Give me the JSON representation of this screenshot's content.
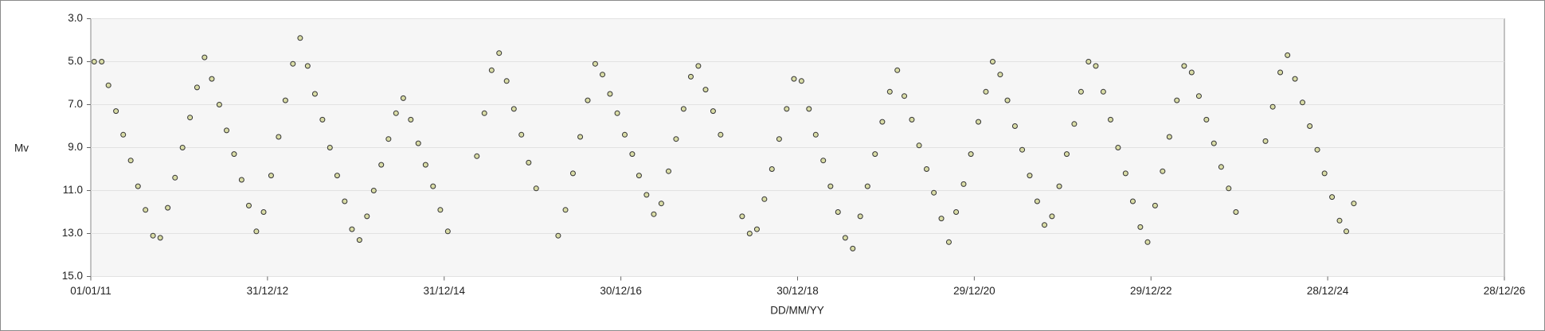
{
  "chart_data": {
    "type": "scatter",
    "x_label": "DD/MM/YY",
    "y_label": "Mv",
    "x": [
      "15/01/11",
      "15/02/11",
      "15/03/11",
      "15/04/11",
      "15/05/11",
      "15/06/11",
      "15/07/11",
      "15/08/11",
      "15/09/11",
      "15/10/11",
      "15/11/11",
      "15/12/11",
      "15/01/12",
      "15/02/12",
      "15/03/12",
      "15/04/12",
      "15/05/12",
      "15/06/12",
      "15/07/12",
      "15/08/12",
      "15/09/12",
      "15/10/12",
      "15/11/12",
      "15/12/12",
      "15/01/13",
      "15/02/13",
      "15/03/13",
      "15/04/13",
      "15/05/13",
      "15/06/13",
      "15/07/13",
      "15/08/13",
      "15/09/13",
      "15/10/13",
      "15/11/13",
      "15/12/13",
      "15/01/14",
      "15/02/14",
      "15/03/14",
      "15/04/14",
      "15/05/14",
      "15/06/14",
      "15/07/14",
      "15/08/14",
      "15/09/14",
      "15/10/14",
      "15/11/14",
      "15/12/14",
      "15/01/15",
      "15/05/15",
      "15/06/15",
      "15/07/15",
      "15/08/15",
      "15/09/15",
      "15/10/15",
      "15/11/15",
      "15/12/15",
      "15/01/16",
      "15/04/16",
      "15/05/16",
      "15/06/16",
      "15/07/16",
      "15/08/16",
      "15/09/16",
      "15/10/16",
      "15/11/16",
      "15/12/16",
      "15/01/17",
      "15/02/17",
      "15/03/17",
      "15/04/17",
      "15/05/17",
      "15/06/17",
      "15/07/17",
      "15/08/17",
      "15/09/17",
      "15/10/17",
      "15/11/17",
      "15/12/17",
      "15/01/18",
      "15/02/18",
      "15/05/18",
      "15/06/18",
      "15/07/18",
      "15/08/18",
      "15/09/18",
      "15/10/18",
      "15/11/18",
      "15/12/18",
      "15/01/19",
      "15/02/19",
      "15/03/19",
      "15/04/19",
      "15/05/19",
      "15/06/19",
      "15/07/19",
      "15/08/19",
      "15/09/19",
      "15/10/19",
      "15/11/19",
      "15/12/19",
      "15/01/20",
      "15/02/20",
      "15/03/20",
      "15/04/20",
      "15/05/20",
      "15/06/20",
      "15/07/20",
      "15/08/20",
      "15/09/20",
      "15/10/20",
      "15/11/20",
      "15/12/20",
      "15/01/21",
      "15/02/21",
      "15/03/21",
      "15/04/21",
      "15/05/21",
      "15/06/21",
      "15/07/21",
      "15/08/21",
      "15/09/21",
      "15/10/21",
      "15/11/21",
      "15/12/21",
      "15/01/22",
      "15/02/22",
      "15/03/22",
      "15/04/22",
      "15/05/22",
      "15/06/22",
      "15/07/22",
      "15/08/22",
      "15/09/22",
      "15/10/22",
      "15/11/22",
      "15/12/22",
      "15/01/23",
      "15/02/23",
      "15/03/23",
      "15/04/23",
      "15/05/23",
      "15/06/23",
      "15/07/23",
      "15/08/23",
      "15/09/23",
      "15/10/23",
      "15/11/23",
      "15/12/23",
      "15/04/24",
      "15/05/24",
      "15/06/24",
      "15/07/24",
      "15/08/24",
      "15/09/24",
      "15/10/24",
      "15/11/24",
      "15/12/24",
      "15/01/25",
      "15/02/25",
      "15/03/25",
      "15/04/25"
    ],
    "values": [
      5.0,
      5.0,
      6.1,
      7.3,
      8.4,
      9.6,
      10.8,
      11.9,
      13.1,
      13.2,
      11.8,
      10.4,
      9.0,
      7.6,
      6.2,
      4.8,
      5.8,
      7.0,
      8.2,
      9.3,
      10.5,
      11.7,
      12.9,
      12.0,
      10.3,
      8.5,
      6.8,
      5.1,
      3.9,
      5.2,
      6.5,
      7.7,
      9.0,
      10.3,
      11.5,
      12.8,
      13.3,
      12.2,
      11.0,
      9.8,
      8.6,
      7.4,
      6.7,
      7.7,
      8.8,
      9.8,
      10.8,
      11.9,
      12.9,
      9.4,
      7.4,
      5.4,
      4.6,
      5.9,
      7.2,
      8.4,
      9.7,
      10.9,
      13.1,
      11.9,
      10.2,
      8.5,
      6.8,
      5.1,
      5.6,
      6.5,
      7.4,
      8.4,
      9.3,
      10.3,
      11.2,
      12.1,
      11.6,
      10.1,
      8.6,
      7.2,
      5.7,
      5.2,
      6.3,
      7.3,
      8.4,
      12.2,
      13.0,
      12.8,
      11.4,
      10.0,
      8.6,
      7.2,
      5.8,
      5.9,
      7.2,
      8.4,
      9.6,
      10.8,
      12.0,
      13.2,
      13.7,
      12.2,
      10.8,
      9.3,
      7.8,
      6.4,
      5.4,
      6.6,
      7.7,
      8.9,
      10.0,
      11.1,
      12.3,
      13.4,
      12.0,
      10.7,
      9.3,
      7.8,
      6.4,
      5.0,
      5.6,
      6.8,
      8.0,
      9.1,
      10.3,
      11.5,
      12.6,
      12.2,
      10.8,
      9.3,
      7.9,
      6.4,
      5.0,
      5.2,
      6.4,
      7.7,
      9.0,
      10.2,
      11.5,
      12.7,
      13.4,
      11.7,
      10.1,
      8.5,
      6.8,
      5.2,
      5.5,
      6.6,
      7.7,
      8.8,
      9.9,
      10.9,
      12.0,
      8.7,
      7.1,
      5.5,
      4.7,
      5.8,
      6.9,
      8.0,
      9.1,
      10.2,
      11.3,
      12.4,
      12.9,
      11.6
    ],
    "color": "#d9dca6",
    "xlim": [
      "01/01/11",
      "28/12/26"
    ],
    "xticks": [
      "01/01/11",
      "31/12/12",
      "31/12/14",
      "30/12/16",
      "30/12/18",
      "29/12/20",
      "29/12/22",
      "28/12/24",
      "28/12/26"
    ],
    "ylim": [
      15,
      3
    ],
    "yticks": [
      {
        "value": 3,
        "label": "3.0"
      },
      {
        "value": 5,
        "label": "5.0"
      },
      {
        "value": 7,
        "label": "7.0"
      },
      {
        "value": 9,
        "label": "9.0"
      },
      {
        "value": 11,
        "label": "11.0"
      },
      {
        "value": 13,
        "label": "13.0"
      },
      {
        "value": 15,
        "label": "15.0"
      }
    ],
    "grid": true
  }
}
